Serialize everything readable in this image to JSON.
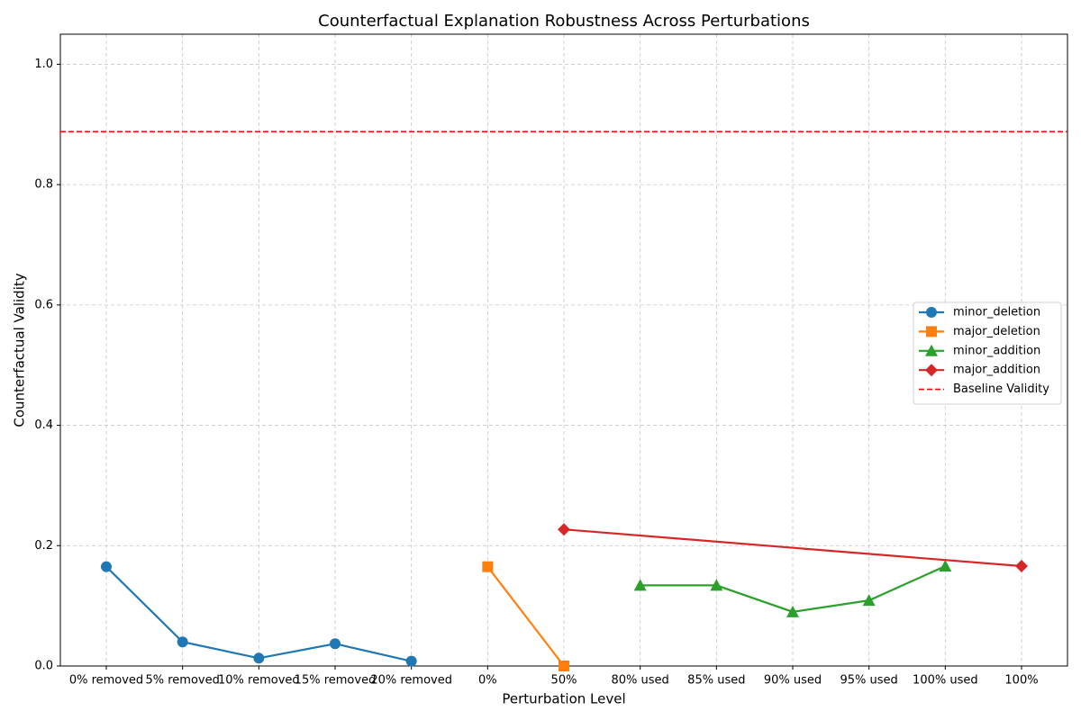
{
  "chart_data": {
    "type": "line",
    "title": "Counterfactual Explanation Robustness Across Perturbations",
    "xlabel": "Perturbation Level",
    "ylabel": "Counterfactual Validity",
    "categories": [
      "0% removed",
      "5% removed",
      "10% removed",
      "15% removed",
      "20% removed",
      "0%",
      "50%",
      "80% used",
      "85% used",
      "90% used",
      "95% used",
      "100% used",
      "100%"
    ],
    "series": [
      {
        "name": "minor_deletion",
        "color": "#1f77b4",
        "marker": "circle",
        "x": [
          "0% removed",
          "5% removed",
          "10% removed",
          "15% removed",
          "20% removed"
        ],
        "values": [
          0.165,
          0.04,
          0.013,
          0.037,
          0.008
        ]
      },
      {
        "name": "major_deletion",
        "color": "#ff7f0e",
        "marker": "square",
        "x": [
          "0%",
          "50%"
        ],
        "values": [
          0.165,
          0.0
        ]
      },
      {
        "name": "minor_addition",
        "color": "#2ca02c",
        "marker": "triangle",
        "x": [
          "80% used",
          "85% used",
          "90% used",
          "95% used",
          "100% used"
        ],
        "values": [
          0.134,
          0.134,
          0.09,
          0.109,
          0.166
        ]
      },
      {
        "name": "major_addition",
        "color": "#d62728",
        "marker": "diamond",
        "x": [
          "50%",
          "100%"
        ],
        "values": [
          0.227,
          0.166
        ]
      }
    ],
    "baseline": {
      "name": "Baseline Validity",
      "value": 0.888,
      "color": "#ff0000"
    },
    "ylim": [
      0,
      1.05
    ],
    "yticks": [
      {
        "value": 0,
        "label": "0.0"
      },
      0.2,
      0.4,
      0.6,
      0.8,
      {
        "value": 1,
        "label": "1.0"
      }
    ],
    "grid": true,
    "legend": "right"
  }
}
